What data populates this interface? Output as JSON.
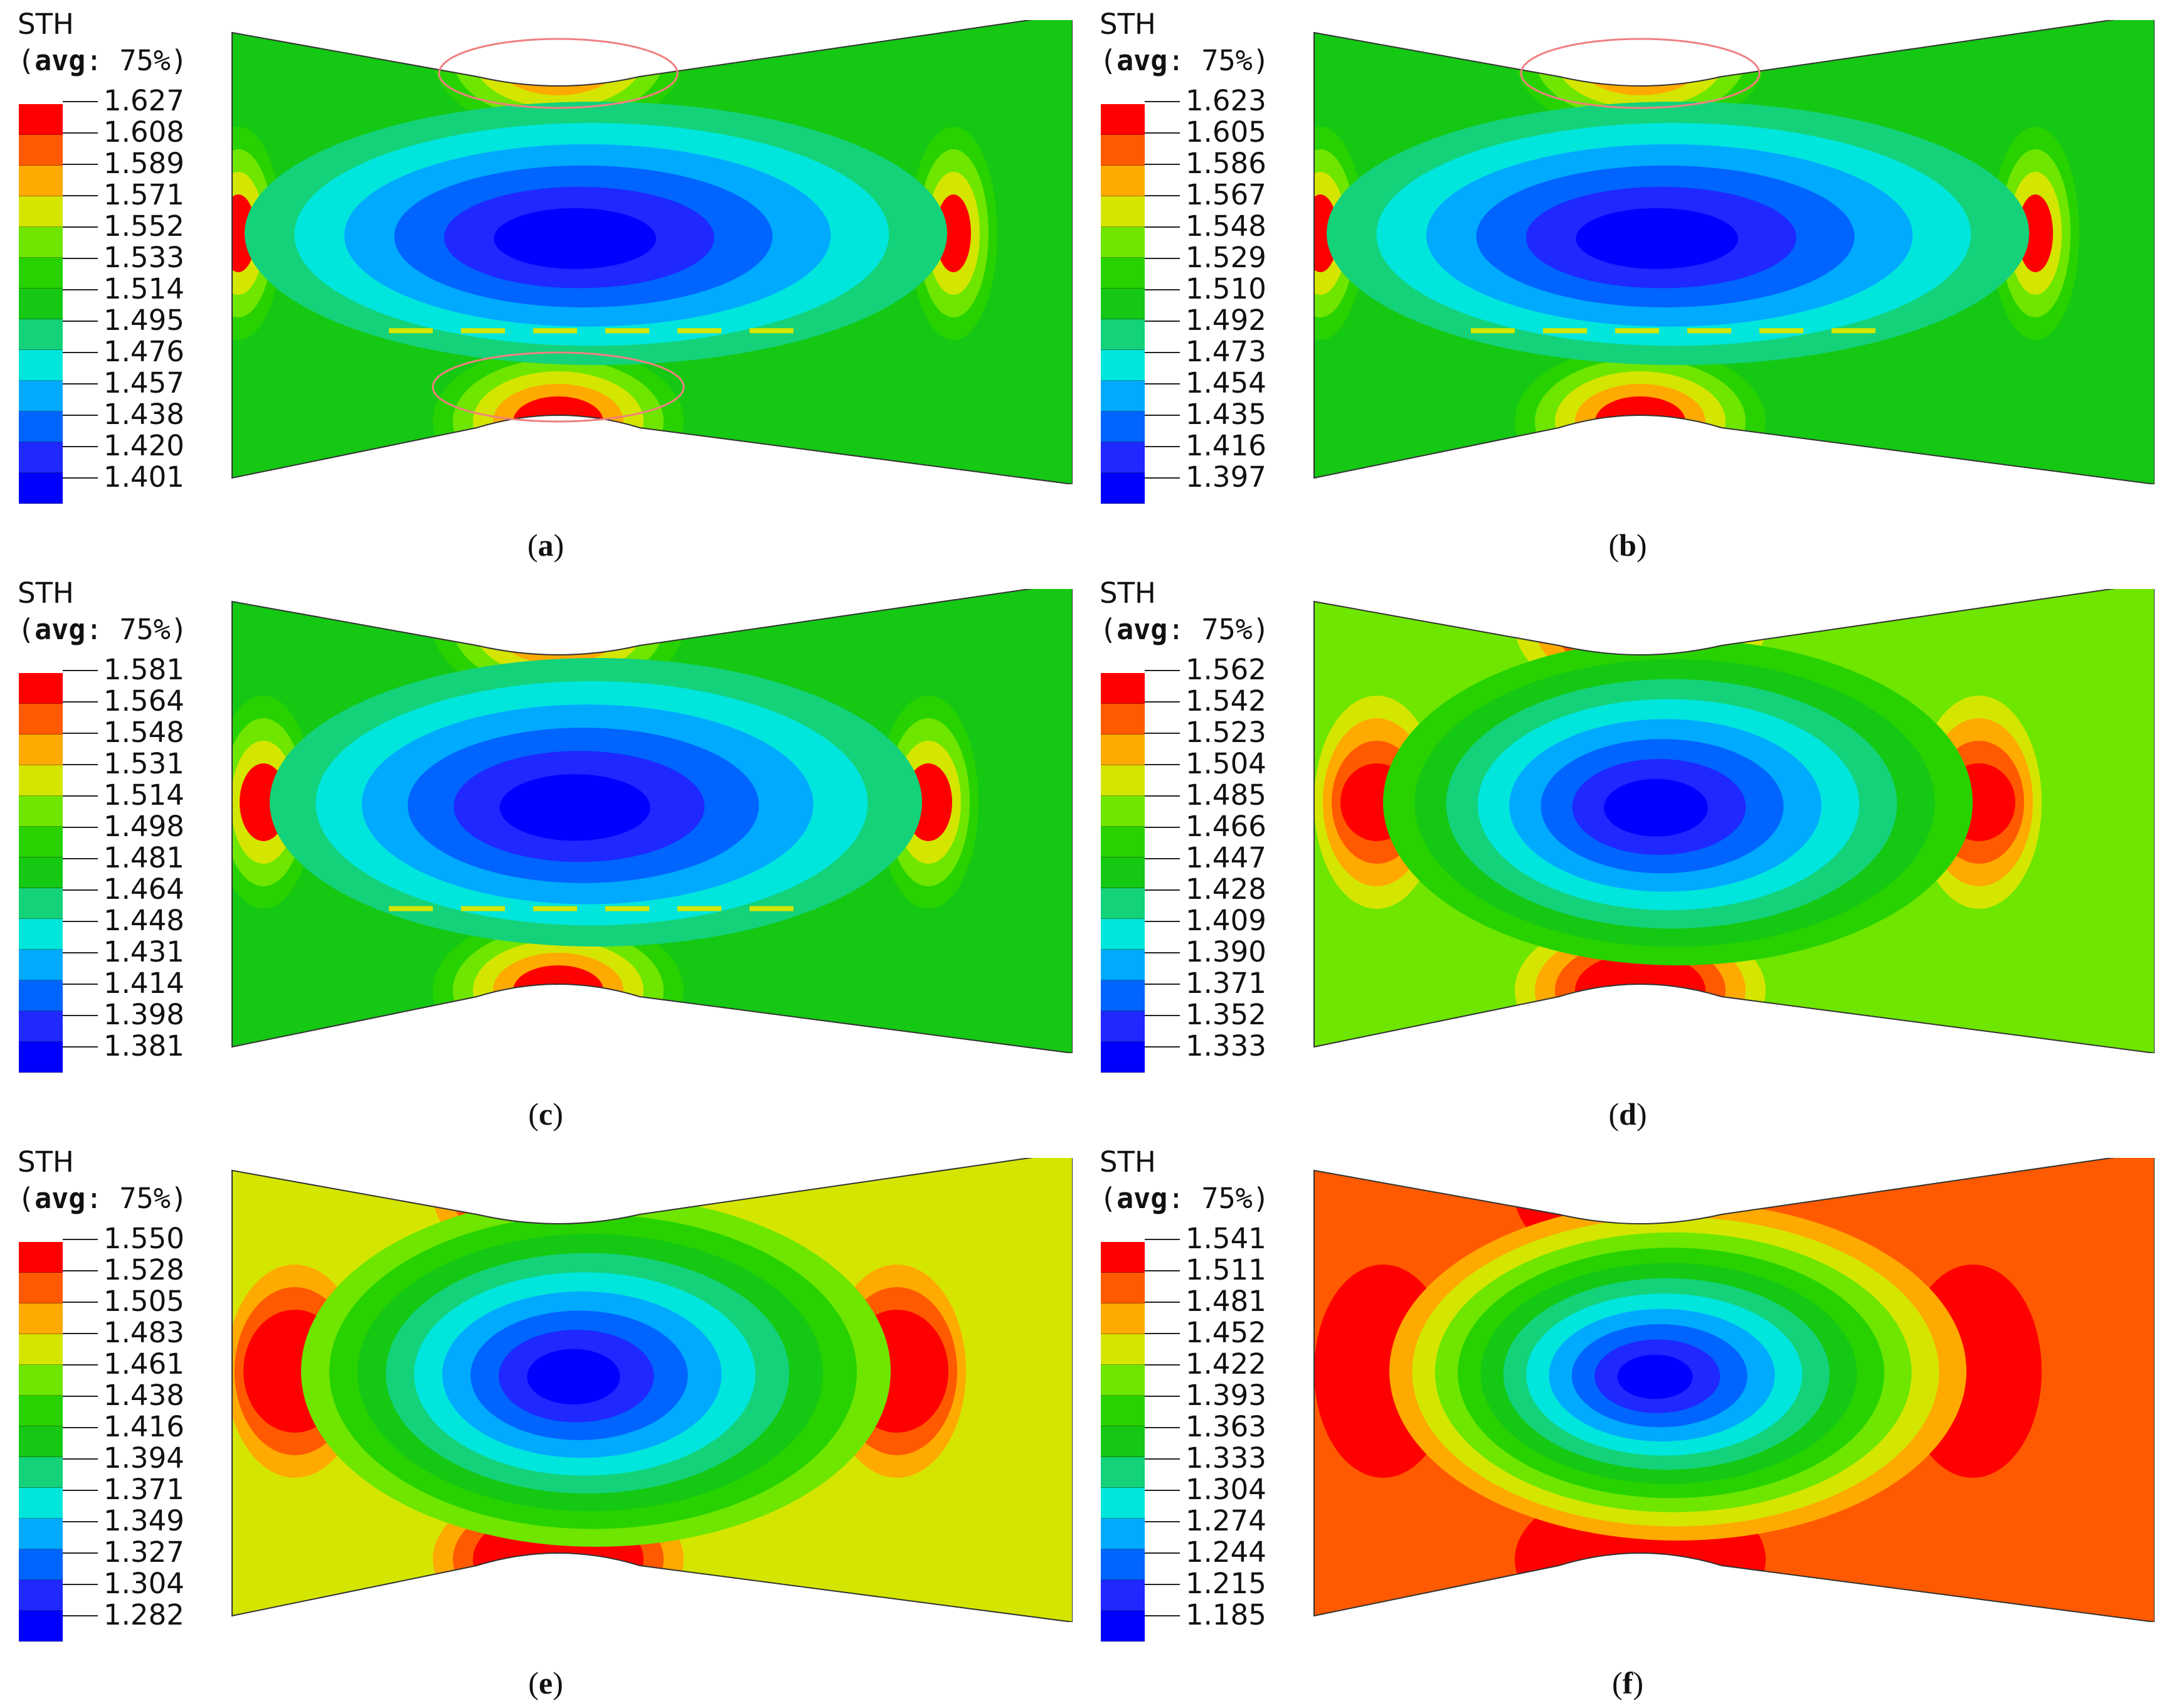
{
  "figure": {
    "panels": [
      {
        "id": "a",
        "caption_open": "(",
        "caption_letter": "a",
        "caption_close": ")",
        "legend_title": "STH",
        "legend_avg_open": "(",
        "legend_avg_word": "avg",
        "legend_avg_rest": ": 75%)",
        "legend_values": [
          "1.627",
          "1.608",
          "1.589",
          "1.571",
          "1.552",
          "1.533",
          "1.514",
          "1.495",
          "1.476",
          "1.457",
          "1.438",
          "1.420",
          "1.401"
        ],
        "background_level": 6,
        "ellipse_highlight": true
      },
      {
        "id": "b",
        "caption_open": "(",
        "caption_letter": "b",
        "caption_close": ")",
        "legend_title": "STH",
        "legend_avg_open": "(",
        "legend_avg_word": "avg",
        "legend_avg_rest": ": 75%)",
        "legend_values": [
          "1.623",
          "1.605",
          "1.586",
          "1.567",
          "1.548",
          "1.529",
          "1.510",
          "1.492",
          "1.473",
          "1.454",
          "1.435",
          "1.416",
          "1.397"
        ],
        "background_level": 6,
        "ellipse_highlight": true
      },
      {
        "id": "c",
        "caption_open": "(",
        "caption_letter": "c",
        "caption_close": ")",
        "legend_title": "STH",
        "legend_avg_open": "(",
        "legend_avg_word": "avg",
        "legend_avg_rest": ": 75%)",
        "legend_values": [
          "1.581",
          "1.564",
          "1.548",
          "1.531",
          "1.514",
          "1.498",
          "1.481",
          "1.464",
          "1.448",
          "1.431",
          "1.414",
          "1.398",
          "1.381"
        ],
        "background_level": 6,
        "ellipse_highlight": false
      },
      {
        "id": "d",
        "caption_open": "(",
        "caption_letter": "d",
        "caption_close": ")",
        "legend_title": "STH",
        "legend_avg_open": "(",
        "legend_avg_word": "avg",
        "legend_avg_rest": ": 75%)",
        "legend_values": [
          "1.562",
          "1.542",
          "1.523",
          "1.504",
          "1.485",
          "1.466",
          "1.447",
          "1.428",
          "1.409",
          "1.390",
          "1.371",
          "1.352",
          "1.333"
        ],
        "background_level": 4,
        "ellipse_highlight": false
      },
      {
        "id": "e",
        "caption_open": "(",
        "caption_letter": "e",
        "caption_close": ")",
        "legend_title": "STH",
        "legend_avg_open": "(",
        "legend_avg_word": "avg",
        "legend_avg_rest": ": 75%)",
        "legend_values": [
          "1.550",
          "1.528",
          "1.505",
          "1.483",
          "1.461",
          "1.438",
          "1.416",
          "1.394",
          "1.371",
          "1.349",
          "1.327",
          "1.304",
          "1.282"
        ],
        "background_level": 3,
        "ellipse_highlight": false
      },
      {
        "id": "f",
        "caption_open": "(",
        "caption_letter": "f",
        "caption_close": ")",
        "legend_title": "STH",
        "legend_avg_open": "(",
        "legend_avg_word": "avg",
        "legend_avg_rest": ": 75%)",
        "legend_values": [
          "1.541",
          "1.511",
          "1.481",
          "1.452",
          "1.422",
          "1.393",
          "1.363",
          "1.333",
          "1.304",
          "1.274",
          "1.244",
          "1.215",
          "1.185"
        ],
        "background_level": 1,
        "ellipse_highlight": false
      }
    ],
    "colormap": [
      "#ff0000",
      "#ff5a00",
      "#ffaa00",
      "#d4e600",
      "#6ee600",
      "#28d200",
      "#14c814",
      "#14d27a",
      "#00e6dc",
      "#00aaff",
      "#0064ff",
      "#1e28ff",
      "#0000ff"
    ],
    "highlight_color": "#f08080"
  }
}
